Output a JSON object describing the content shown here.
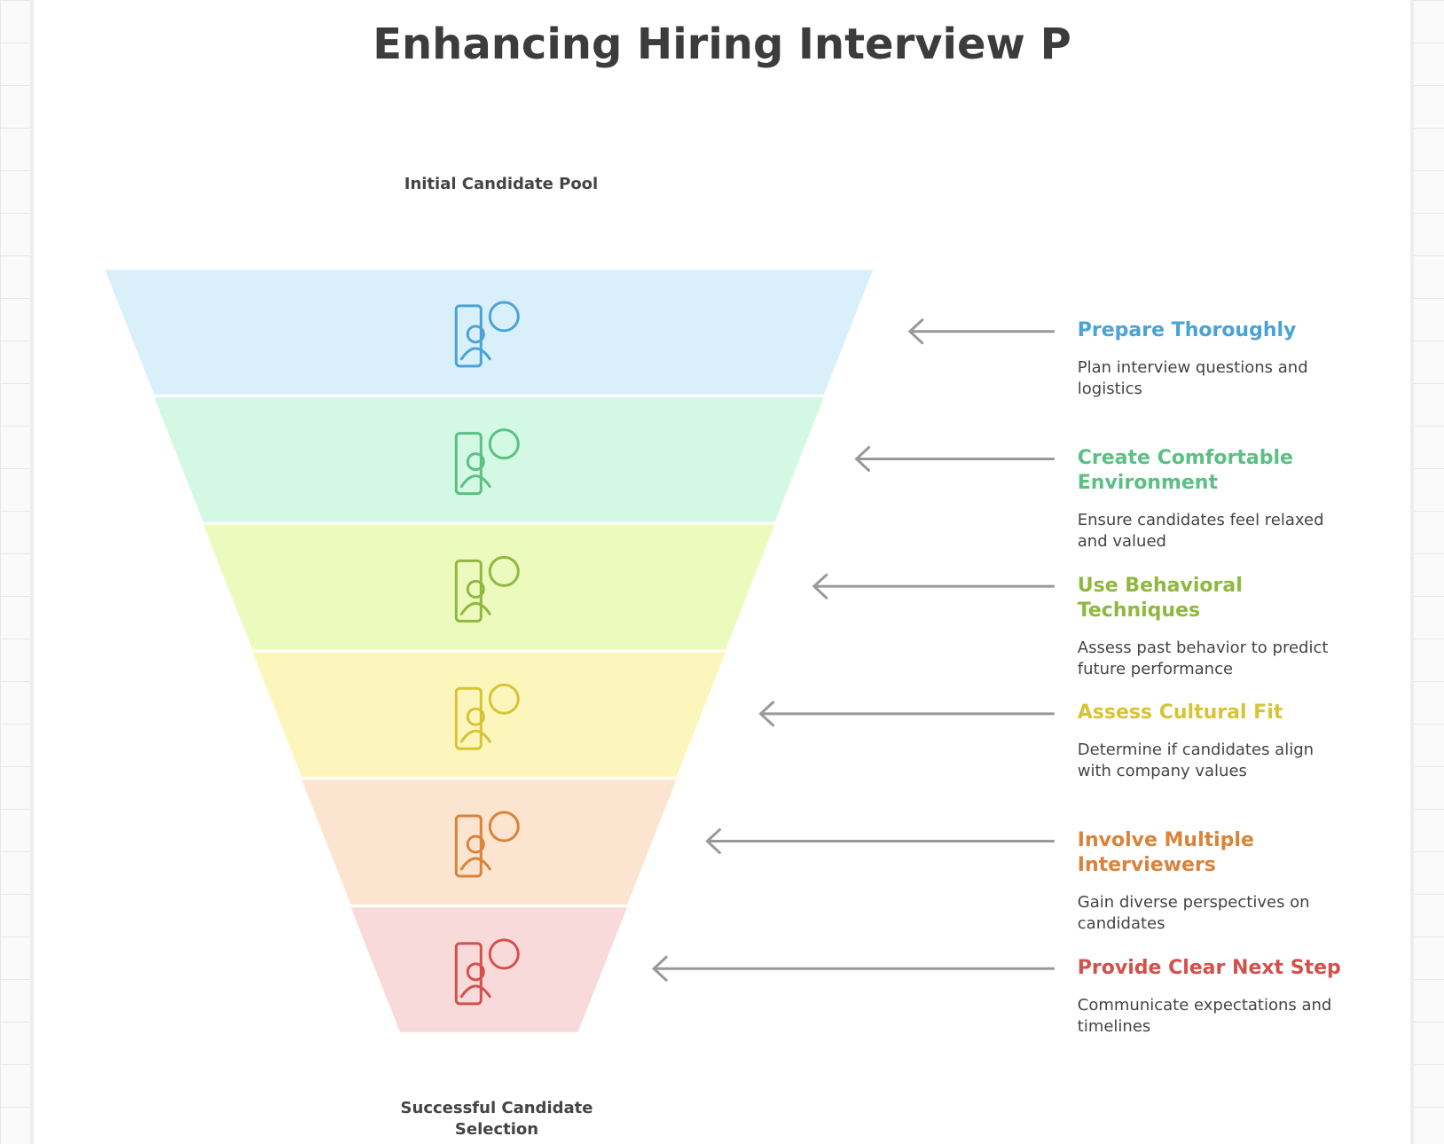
{
  "title": "Enhancing Hiring Interview P",
  "top_label": "Initial Candidate Pool",
  "bottom_label": "Successful Candidate Selection",
  "stages": [
    {
      "title": "Prepare Thoroughly",
      "description": "Plan interview questions and logistics",
      "color": "#4aa3d5",
      "fill": "#d9f0fb"
    },
    {
      "title": "Create Comfortable Environment",
      "description": "Ensure candidates feel relaxed and valued",
      "color": "#5cbf84",
      "fill": "#d3f9e4"
    },
    {
      "title": "Use Behavioral Techniques",
      "description": "Assess past behavior to predict future performance",
      "color": "#8fb83f",
      "fill": "#ecfbbd"
    },
    {
      "title": "Assess Cultural Fit",
      "description": "Determine if candidates align with company values",
      "color": "#d6c435",
      "fill": "#fdf6bc"
    },
    {
      "title": "Involve Multiple Interviewers",
      "description": "Gain diverse perspectives on candidates",
      "color": "#d9833b",
      "fill": "#fbe5d0"
    },
    {
      "title": "Provide Clear Next Step",
      "description": "Communicate expectations and timelines",
      "color": "#d2514c",
      "fill": "#f9dada"
    }
  ]
}
